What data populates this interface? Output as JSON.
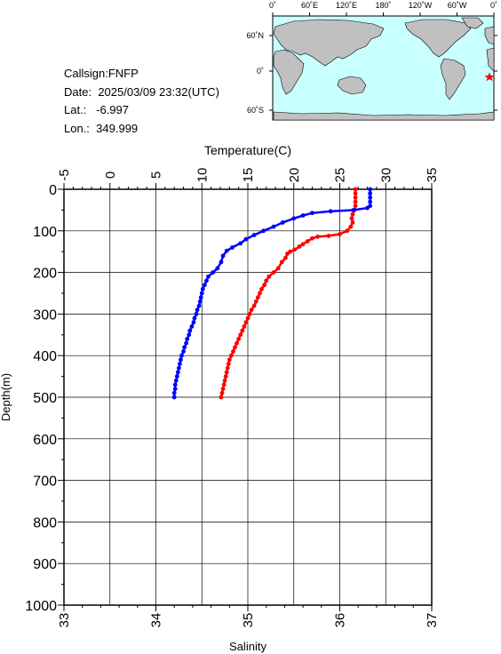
{
  "station": {
    "callsign_line": "Callsign:FNFP",
    "date_label": "Date:",
    "date_value": "2025/03/09 23:32(UTC)",
    "lat_label": "Lat.:",
    "lat_value": "-6.997",
    "lon_label": "Lon.:",
    "lon_value": "349.999"
  },
  "map": {
    "top_tick_labels": [
      "0˚",
      "60˚E",
      "120˚E",
      "180˚",
      "120˚W",
      "60˚W",
      "0˚"
    ],
    "lat_tick_labels": [
      "60˚N",
      "0˚",
      "60˚S"
    ],
    "ocean_color": "#c8ffff",
    "land_color": "#c0c0c0",
    "marker": "red-star",
    "marker_color": "#ff0000"
  },
  "chart_data": {
    "type": "line",
    "top_axis": {
      "label": "Temperature(C)",
      "range": [
        -5,
        35
      ],
      "ticks": [
        "-5",
        "0",
        "5",
        "10",
        "15",
        "20",
        "25",
        "30",
        "35"
      ]
    },
    "bottom_axis": {
      "label": "Salinity",
      "range": [
        33,
        37
      ],
      "ticks": [
        "33",
        "34",
        "35",
        "36",
        "37"
      ]
    },
    "left_axis": {
      "label": "Depth(m)",
      "range": [
        0,
        1000
      ],
      "inverted": true,
      "ticks": [
        "0",
        "100",
        "200",
        "300",
        "400",
        "500",
        "600",
        "700",
        "800",
        "900",
        "1000"
      ]
    },
    "grid": true,
    "series": [
      {
        "color": "#ff0000",
        "axis": "temperature",
        "points": [
          [
            26.7,
            0
          ],
          [
            26.7,
            10
          ],
          [
            26.7,
            20
          ],
          [
            26.7,
            30
          ],
          [
            26.7,
            40
          ],
          [
            26.6,
            50
          ],
          [
            26.4,
            60
          ],
          [
            26.3,
            70
          ],
          [
            26.4,
            80
          ],
          [
            26.2,
            90
          ],
          [
            25.8,
            100
          ],
          [
            25.0,
            108
          ],
          [
            23.8,
            112
          ],
          [
            22.6,
            114
          ],
          [
            22.0,
            118
          ],
          [
            21.5,
            125
          ],
          [
            21.0,
            132
          ],
          [
            20.6,
            138
          ],
          [
            20.1,
            145
          ],
          [
            19.6,
            150
          ],
          [
            19.3,
            155
          ],
          [
            19.1,
            165
          ],
          [
            18.7,
            175
          ],
          [
            18.3,
            190
          ],
          [
            17.8,
            200
          ],
          [
            17.3,
            210
          ],
          [
            17.0,
            220
          ],
          [
            16.8,
            230
          ],
          [
            16.5,
            240
          ],
          [
            16.3,
            250
          ],
          [
            16.1,
            260
          ],
          [
            15.9,
            270
          ],
          [
            15.7,
            280
          ],
          [
            15.4,
            290
          ],
          [
            15.2,
            300
          ],
          [
            15.0,
            310
          ],
          [
            14.8,
            320
          ],
          [
            14.6,
            330
          ],
          [
            14.4,
            340
          ],
          [
            14.2,
            350
          ],
          [
            14.0,
            360
          ],
          [
            13.8,
            370
          ],
          [
            13.6,
            380
          ],
          [
            13.4,
            390
          ],
          [
            13.2,
            400
          ],
          [
            13.0,
            410
          ],
          [
            12.9,
            420
          ],
          [
            12.8,
            430
          ],
          [
            12.7,
            440
          ],
          [
            12.6,
            450
          ],
          [
            12.5,
            460
          ],
          [
            12.4,
            470
          ],
          [
            12.3,
            480
          ],
          [
            12.2,
            490
          ],
          [
            12.1,
            500
          ]
        ]
      },
      {
        "color": "#0000ff",
        "axis": "salinity",
        "points": [
          [
            36.33,
            0
          ],
          [
            36.33,
            10
          ],
          [
            36.33,
            20
          ],
          [
            36.33,
            30
          ],
          [
            36.33,
            40
          ],
          [
            36.3,
            45
          ],
          [
            36.15,
            50
          ],
          [
            35.9,
            53
          ],
          [
            35.7,
            57
          ],
          [
            35.6,
            63
          ],
          [
            35.5,
            70
          ],
          [
            35.38,
            80
          ],
          [
            35.28,
            90
          ],
          [
            35.17,
            100
          ],
          [
            35.07,
            110
          ],
          [
            34.98,
            120
          ],
          [
            34.92,
            130
          ],
          [
            34.83,
            140
          ],
          [
            34.77,
            148
          ],
          [
            34.73,
            160
          ],
          [
            34.71,
            175
          ],
          [
            34.67,
            190
          ],
          [
            34.62,
            200
          ],
          [
            34.57,
            210
          ],
          [
            34.55,
            220
          ],
          [
            34.53,
            230
          ],
          [
            34.51,
            240
          ],
          [
            34.5,
            250
          ],
          [
            34.49,
            260
          ],
          [
            34.48,
            270
          ],
          [
            34.47,
            280
          ],
          [
            34.45,
            290
          ],
          [
            34.44,
            300
          ],
          [
            34.42,
            310
          ],
          [
            34.41,
            320
          ],
          [
            34.39,
            330
          ],
          [
            34.37,
            340
          ],
          [
            34.36,
            350
          ],
          [
            34.34,
            360
          ],
          [
            34.33,
            370
          ],
          [
            34.31,
            380
          ],
          [
            34.3,
            390
          ],
          [
            34.28,
            400
          ],
          [
            34.27,
            410
          ],
          [
            34.26,
            420
          ],
          [
            34.25,
            430
          ],
          [
            34.24,
            440
          ],
          [
            34.23,
            450
          ],
          [
            34.22,
            460
          ],
          [
            34.21,
            470
          ],
          [
            34.21,
            480
          ],
          [
            34.2,
            490
          ],
          [
            34.2,
            500
          ]
        ]
      }
    ]
  }
}
